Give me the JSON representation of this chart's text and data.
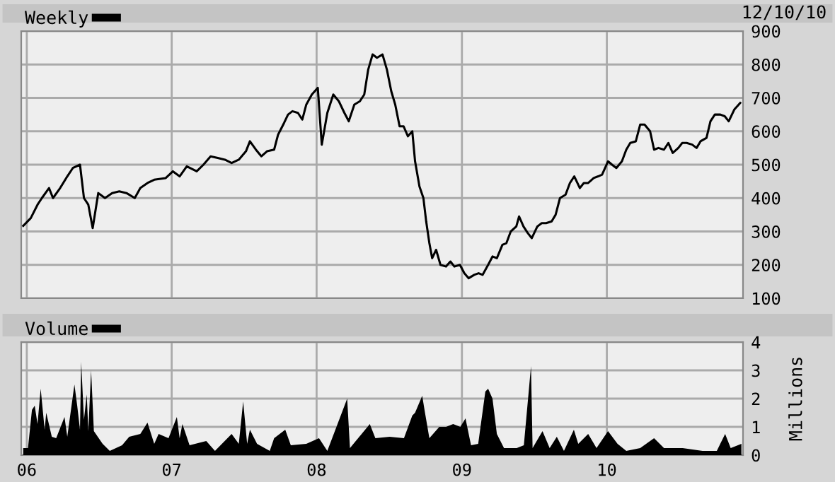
{
  "chart_data": [
    {
      "type": "line",
      "annotations": [
        "12/10/10"
      ],
      "x": [
        "2005-12-23",
        "2006-01-11",
        "2006-01-28",
        "2006-02-08",
        "2006-02-26",
        "2006-03-08",
        "2006-03-26",
        "2006-04-13",
        "2006-04-27",
        "2006-05-15",
        "2006-05-25",
        "2006-06-05",
        "2006-06-16",
        "2006-06-30",
        "2006-07-17",
        "2006-08-04",
        "2006-08-22",
        "2006-09-09",
        "2006-09-30",
        "2006-10-14",
        "2006-11-01",
        "2006-11-18",
        "2006-12-17",
        "2007-01-04",
        "2007-01-21",
        "2007-02-08",
        "2007-03-05",
        "2007-03-22",
        "2007-04-09",
        "2007-04-27",
        "2007-05-15",
        "2007-06-01",
        "2007-06-19",
        "2007-07-07",
        "2007-07-17",
        "2007-08-01",
        "2007-08-15",
        "2007-08-29",
        "2007-09-16",
        "2007-09-26",
        "2007-10-11",
        "2007-10-21",
        "2007-11-01",
        "2007-11-15",
        "2007-11-26",
        "2007-12-06",
        "2007-12-20",
        "2008-01-04",
        "2008-01-14",
        "2008-01-28",
        "2008-02-12",
        "2008-02-26",
        "2008-03-11",
        "2008-03-22",
        "2008-04-05",
        "2008-04-19",
        "2008-04-30",
        "2008-05-10",
        "2008-05-21",
        "2008-06-01",
        "2008-06-15",
        "2008-06-26",
        "2008-07-07",
        "2008-07-17",
        "2008-07-28",
        "2008-08-07",
        "2008-08-18",
        "2008-08-29",
        "2008-09-05",
        "2008-09-16",
        "2008-09-26",
        "2008-10-03",
        "2008-10-11",
        "2008-10-18",
        "2008-10-28",
        "2008-11-08",
        "2008-11-22",
        "2008-12-03",
        "2008-12-13",
        "2008-12-27",
        "2009-01-07",
        "2009-01-18",
        "2009-02-01",
        "2009-02-12",
        "2009-02-22",
        "2009-03-08",
        "2009-03-19",
        "2009-03-30",
        "2009-04-13",
        "2009-04-23",
        "2009-05-04",
        "2009-05-18",
        "2009-05-25",
        "2009-06-05",
        "2009-06-16",
        "2009-06-26",
        "2009-07-10",
        "2009-07-21",
        "2009-08-01",
        "2009-08-15",
        "2009-08-25",
        "2009-09-05",
        "2009-09-19",
        "2009-09-30",
        "2009-10-11",
        "2009-10-25",
        "2009-11-04",
        "2009-11-15",
        "2009-11-29",
        "2009-12-10",
        "2009-12-20",
        "2010-01-04",
        "2010-01-14",
        "2010-01-25",
        "2010-02-08",
        "2010-02-19",
        "2010-03-01",
        "2010-03-15",
        "2010-03-26",
        "2010-04-06",
        "2010-04-20",
        "2010-04-30",
        "2010-05-11",
        "2010-05-25",
        "2010-06-05",
        "2010-06-16",
        "2010-06-30",
        "2010-07-10",
        "2010-07-21",
        "2010-08-04",
        "2010-08-15",
        "2010-08-25",
        "2010-09-09",
        "2010-09-19",
        "2010-09-30",
        "2010-10-14",
        "2010-10-25",
        "2010-11-04",
        "2010-11-18",
        "2010-12-03"
      ],
      "series": [
        {
          "name": "Weekly",
          "color": "#000000",
          "values": [
            317,
            340,
            380,
            400,
            430,
            400,
            430,
            465,
            490,
            500,
            400,
            380,
            310,
            415,
            400,
            415,
            420,
            415,
            400,
            430,
            445,
            455,
            460,
            480,
            465,
            495,
            480,
            500,
            525,
            520,
            515,
            505,
            515,
            540,
            570,
            545,
            525,
            540,
            545,
            590,
            625,
            650,
            660,
            655,
            635,
            680,
            710,
            730,
            560,
            655,
            710,
            690,
            655,
            630,
            680,
            690,
            710,
            785,
            830,
            820,
            830,
            785,
            720,
            680,
            615,
            615,
            585,
            600,
            510,
            435,
            400,
            330,
            265,
            220,
            245,
            200,
            195,
            210,
            195,
            200,
            175,
            160,
            170,
            175,
            170,
            200,
            225,
            220,
            260,
            265,
            300,
            315,
            345,
            315,
            295,
            280,
            315,
            325,
            325,
            330,
            350,
            400,
            410,
            445,
            465,
            430,
            445,
            445,
            460,
            465,
            470,
            510,
            500,
            490,
            510,
            545,
            565,
            570,
            620,
            620,
            600,
            545,
            550,
            545,
            565,
            535,
            550,
            565,
            565,
            560,
            550,
            570,
            580,
            630,
            650,
            650,
            645,
            630,
            665,
            685
          ]
        }
      ],
      "xlim": [
        "2005-12-18",
        "2010-12-10"
      ],
      "xticks": [
        {
          "value": "2006-01-01",
          "label": null
        },
        {
          "value": "2007-01-01",
          "label": null
        },
        {
          "value": "2008-01-01",
          "label": null
        },
        {
          "value": "2009-01-01",
          "label": null
        },
        {
          "value": "2010-01-01",
          "label": null
        }
      ],
      "ylim": [
        100,
        900
      ],
      "yticks": [
        100,
        200,
        300,
        400,
        500,
        600,
        700,
        800,
        900
      ],
      "grid": true,
      "legend": "top left",
      "tick_labels": "y"
    },
    {
      "type": "area",
      "y2label": "Millions",
      "x": [
        "2005-12-23",
        "2006-01-04",
        "2006-01-14",
        "2006-01-21",
        "2006-01-28",
        "2006-02-05",
        "2006-02-15",
        "2006-02-19",
        "2006-03-05",
        "2006-03-16",
        "2006-04-06",
        "2006-04-13",
        "2006-05-01",
        "2006-05-08",
        "2006-05-15",
        "2006-05-18",
        "2006-05-25",
        "2006-06-01",
        "2006-06-05",
        "2006-06-12",
        "2006-06-19",
        "2006-07-11",
        "2006-07-29",
        "2006-08-29",
        "2006-09-16",
        "2006-10-14",
        "2006-11-01",
        "2006-11-18",
        "2006-11-29",
        "2006-12-24",
        "2007-01-14",
        "2007-01-21",
        "2007-01-28",
        "2007-02-15",
        "2007-03-29",
        "2007-04-20",
        "2007-06-01",
        "2007-06-19",
        "2007-06-30",
        "2007-07-10",
        "2007-07-17",
        "2007-08-04",
        "2007-09-05",
        "2007-09-16",
        "2007-10-14",
        "2007-10-28",
        "2007-12-06",
        "2008-01-07",
        "2008-01-28",
        "2008-03-18",
        "2008-03-25",
        "2008-05-14",
        "2008-05-28",
        "2008-07-03",
        "2008-08-08",
        "2008-08-29",
        "2008-09-05",
        "2008-09-23",
        "2008-09-30",
        "2008-10-11",
        "2008-11-05",
        "2008-11-22",
        "2008-12-10",
        "2008-12-28",
        "2009-01-10",
        "2009-01-24",
        "2009-02-11",
        "2009-03-01",
        "2009-03-08",
        "2009-03-19",
        "2009-03-30",
        "2009-04-17",
        "2009-05-19",
        "2009-06-06",
        "2009-06-24",
        "2009-06-28",
        "2009-07-23",
        "2009-08-10",
        "2009-08-28",
        "2009-09-15",
        "2009-10-10",
        "2009-10-21",
        "2009-11-15",
        "2009-12-06",
        "2010-01-04",
        "2010-01-28",
        "2010-02-19",
        "2010-03-26",
        "2010-04-30",
        "2010-05-25",
        "2010-07-11",
        "2010-08-30",
        "2010-10-05",
        "2010-10-26",
        "2010-11-09",
        "2010-12-06"
      ],
      "series": [
        {
          "name": "Volume",
          "color": "#000000",
          "values": [
            0.25,
            0.25,
            1.6,
            1.75,
            1.1,
            2.35,
            0.9,
            1.5,
            0.65,
            0.6,
            1.35,
            0.65,
            2.5,
            1.75,
            0.9,
            3.3,
            1.25,
            2.15,
            0.85,
            3.0,
            0.85,
            0.4,
            0.15,
            0.35,
            0.65,
            0.75,
            1.15,
            0.4,
            0.75,
            0.6,
            1.35,
            0.6,
            1.1,
            0.35,
            0.5,
            0.15,
            0.75,
            0.4,
            1.9,
            0.4,
            0.9,
            0.4,
            0.15,
            0.6,
            0.9,
            0.35,
            0.4,
            0.6,
            0.15,
            2.0,
            0.25,
            1.1,
            0.6,
            0.65,
            0.6,
            1.4,
            1.5,
            2.1,
            1.5,
            0.6,
            1.0,
            1.0,
            1.1,
            1.0,
            1.3,
            0.35,
            0.4,
            2.25,
            2.35,
            2.0,
            0.75,
            0.25,
            0.25,
            0.35,
            3.15,
            0.25,
            0.85,
            0.25,
            0.65,
            0.15,
            0.9,
            0.4,
            0.75,
            0.25,
            0.85,
            0.4,
            0.15,
            0.25,
            0.6,
            0.25,
            0.25,
            0.15,
            0.15,
            0.75,
            0.25,
            0.4
          ]
        }
      ],
      "xlim": [
        "2005-12-18",
        "2010-12-10"
      ],
      "xticks": [
        {
          "value": "2006-01-01",
          "label": "06"
        },
        {
          "value": "2007-01-01",
          "label": "07"
        },
        {
          "value": "2008-01-01",
          "label": "08"
        },
        {
          "value": "2009-01-01",
          "label": "09"
        },
        {
          "value": "2010-01-01",
          "label": "10"
        }
      ],
      "ylim": [
        0,
        4
      ],
      "yticks": [
        0,
        1,
        2,
        3,
        4
      ],
      "grid": true,
      "legend": "top left"
    }
  ]
}
